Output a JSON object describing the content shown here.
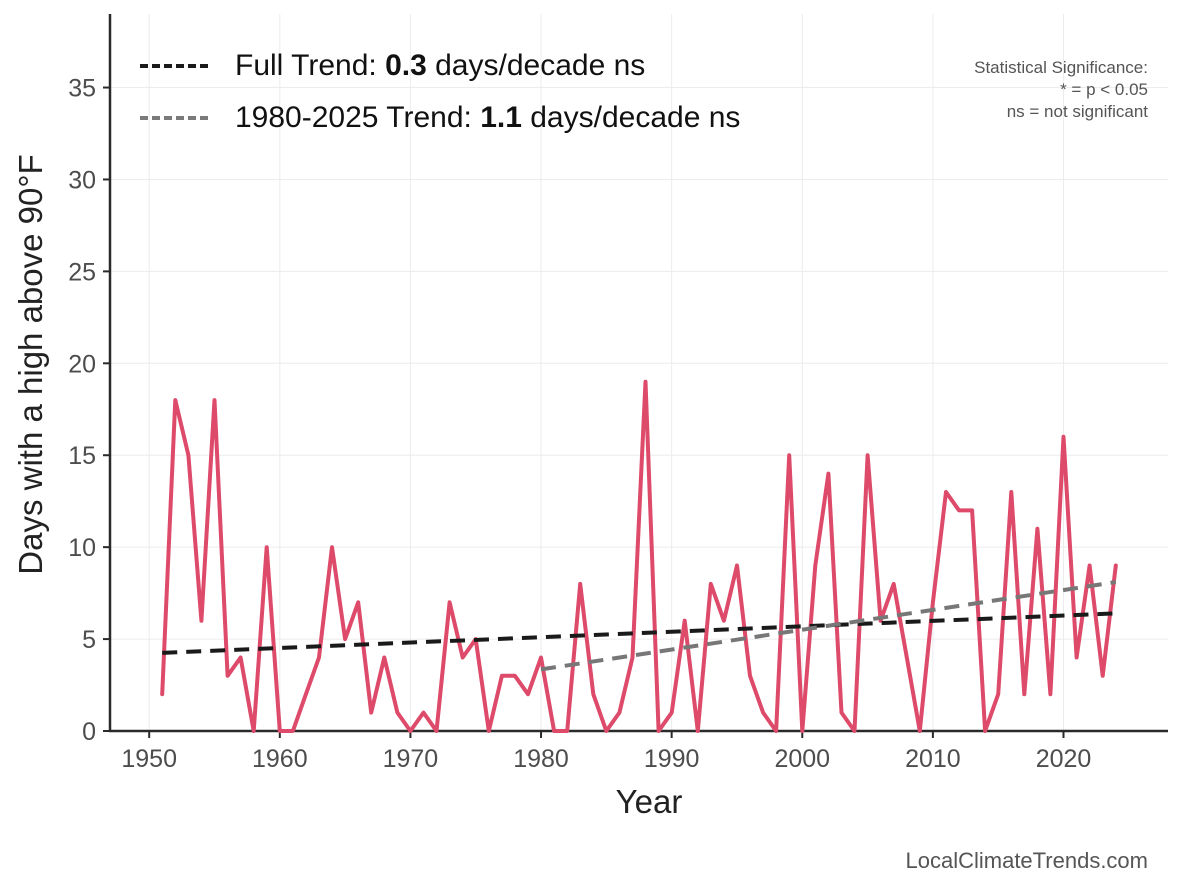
{
  "chart_data": {
    "type": "line",
    "xlabel": "Year",
    "ylabel": "Days with a high above 90°F",
    "xlim": [
      1947,
      2028
    ],
    "ylim": [
      0,
      39
    ],
    "x_ticks": [
      1950,
      1960,
      1970,
      1980,
      1990,
      2000,
      2010,
      2020
    ],
    "y_ticks": [
      0,
      5,
      10,
      15,
      20,
      25,
      30,
      35
    ],
    "grid": true,
    "series": [
      {
        "color": "#dd4a6a",
        "x": [
          1951,
          1952,
          1953,
          1954,
          1955,
          1956,
          1957,
          1958,
          1959,
          1960,
          1961,
          1962,
          1963,
          1964,
          1965,
          1966,
          1967,
          1968,
          1969,
          1970,
          1971,
          1972,
          1973,
          1974,
          1975,
          1976,
          1977,
          1978,
          1979,
          1980,
          1981,
          1982,
          1983,
          1984,
          1985,
          1986,
          1987,
          1988,
          1989,
          1990,
          1991,
          1992,
          1993,
          1994,
          1995,
          1996,
          1997,
          1998,
          1999,
          2000,
          2001,
          2002,
          2003,
          2004,
          2005,
          2006,
          2007,
          2008,
          2009,
          2010,
          2011,
          2012,
          2013,
          2014,
          2015,
          2016,
          2017,
          2018,
          2019,
          2020,
          2021,
          2022,
          2023,
          2024
        ],
        "values": [
          2,
          18,
          15,
          6,
          18,
          3,
          4,
          0,
          10,
          0,
          0,
          2,
          4,
          10,
          5,
          7,
          1,
          4,
          1,
          0,
          1,
          0,
          7,
          4,
          5,
          0,
          3,
          3,
          2,
          4,
          0,
          0,
          8,
          2,
          0,
          1,
          4,
          19,
          0,
          1,
          6,
          0,
          8,
          6,
          9,
          3,
          1,
          0,
          15,
          0,
          9,
          14,
          1,
          0,
          15,
          6,
          8,
          4,
          0,
          7,
          13,
          12,
          12,
          0,
          2,
          13,
          2,
          11,
          2,
          16,
          4,
          9,
          3,
          9
        ]
      }
    ],
    "trends": [
      {
        "name": "Full Trend",
        "value": "0.3",
        "unit": "days/decade",
        "significance": "ns",
        "color": "#1a1a1a",
        "x": [
          1951,
          2024
        ],
        "y": [
          4.25,
          6.4
        ]
      },
      {
        "name": "1980-2025 Trend",
        "value": "1.1",
        "unit": "days/decade",
        "significance": "ns",
        "color": "#777777",
        "x": [
          1980,
          2024
        ],
        "y": [
          3.35,
          8.1
        ]
      }
    ],
    "legend_position": "top-left",
    "significance_note": [
      "Statistical Significance:",
      "* = p < 0.05",
      "ns = not significant"
    ],
    "credit": "LocalClimateTrends.com"
  }
}
